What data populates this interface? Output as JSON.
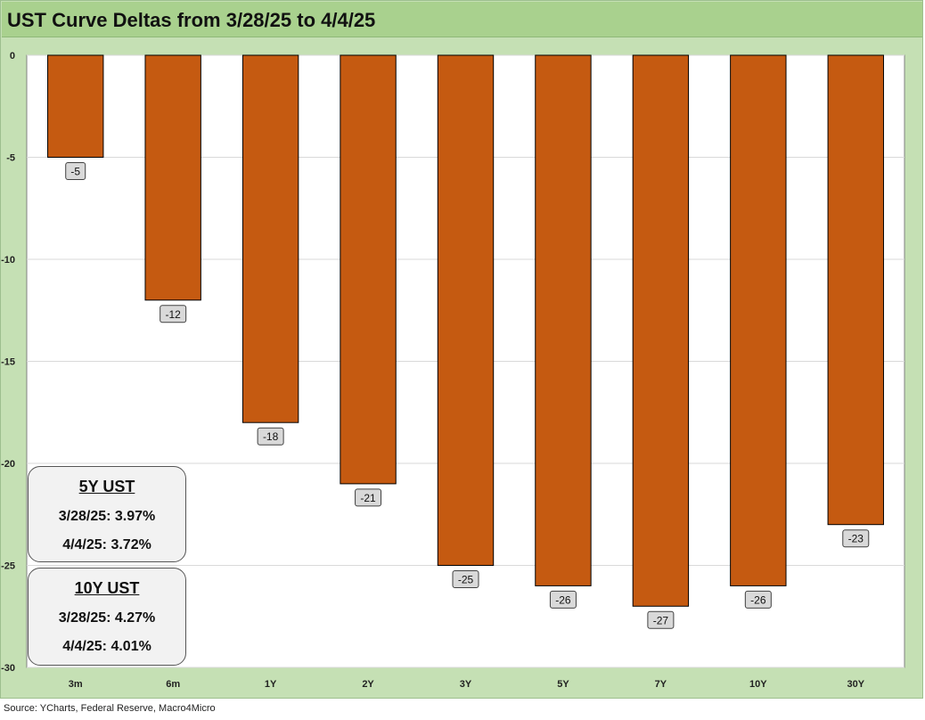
{
  "chart_data": {
    "type": "bar",
    "title": "UST Curve Deltas from 3/28/25 to 4/4/25",
    "categories": [
      "3m",
      "6m",
      "1Y",
      "2Y",
      "3Y",
      "5Y",
      "7Y",
      "10Y",
      "30Y"
    ],
    "values": [
      -5,
      -12,
      -18,
      -21,
      -25,
      -26,
      -27,
      -26,
      -23
    ],
    "data_labels": [
      "-5",
      "-12",
      "-18",
      "-21",
      "-25",
      "-26",
      "-27",
      "-26",
      "-23"
    ],
    "ylim": [
      -30,
      0
    ],
    "yticks": [
      0,
      -5,
      -10,
      -15,
      -20,
      -25,
      -30
    ],
    "xlabel": "",
    "ylabel": "",
    "grid": true,
    "bar_color": "#c55a11"
  },
  "info_boxes": [
    {
      "title": "5Y UST",
      "lines": [
        "3/28/25: 3.97%",
        "4/4/25: 3.72%"
      ]
    },
    {
      "title": "10Y UST",
      "lines": [
        "3/28/25: 4.27%",
        "4/4/25: 4.01%"
      ]
    }
  ],
  "source": "Source: YCharts, Federal Reserve, Macro4Micro"
}
